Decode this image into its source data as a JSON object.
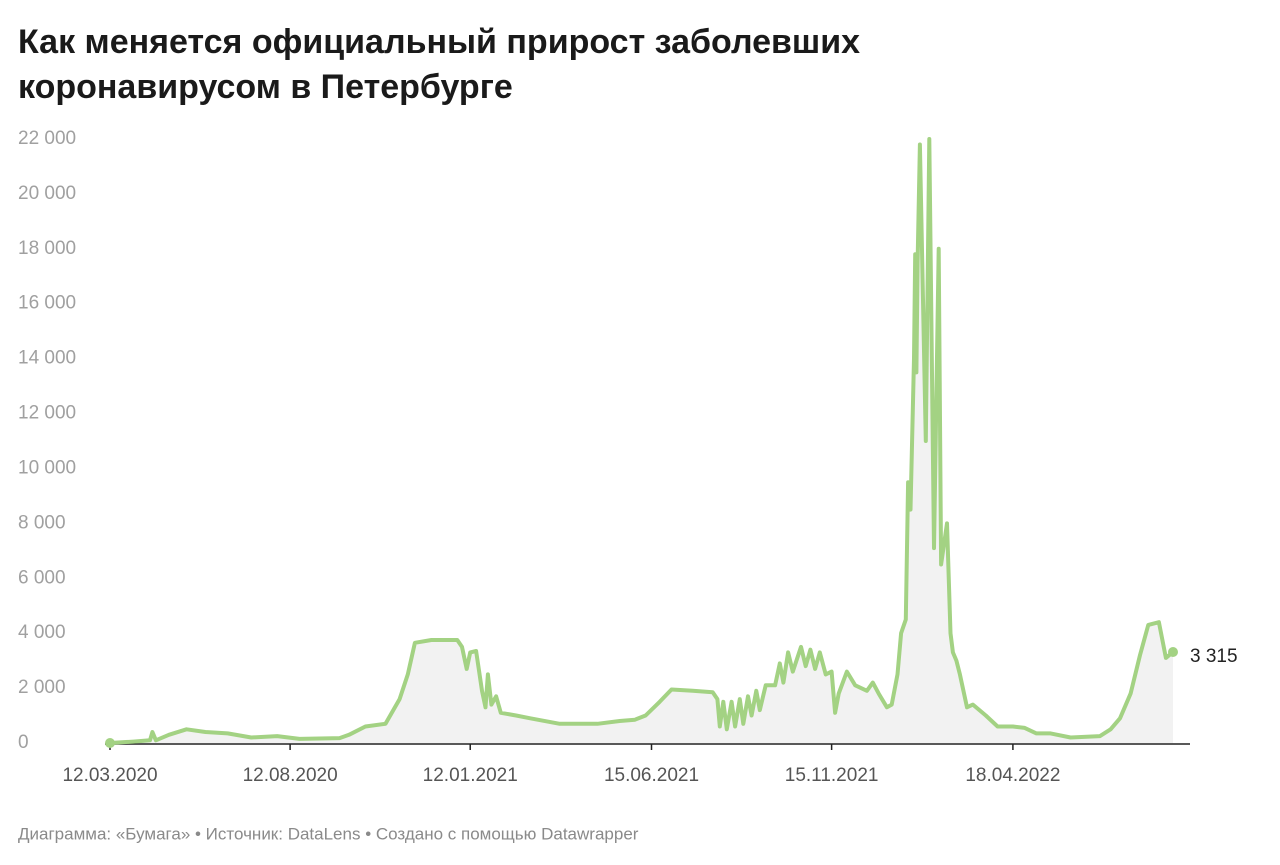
{
  "chart_data": {
    "type": "line",
    "title": "Как меняется официальный прирост заболевших",
    "title_line2": "коронавирусом в Петербурге",
    "source": "Диаграмма: «Бумага» • Источник: DataLens • Создано с помощью Datawrapper",
    "color": "#a3d283",
    "area_color": "#f2f2f2",
    "grid": false,
    "x": [
      "12.03.2020",
      "01.04.2020",
      "15.04.2020",
      "17.04.2020",
      "20.04.2020",
      "01.05.2020",
      "16.05.2020",
      "01.06.2020",
      "20.06.2020",
      "10.07.2020",
      "01.08.2020",
      "20.08.2020",
      "23.09.2020",
      "01.10.2020",
      "15.10.2020",
      "01.11.2020",
      "13.11.2020",
      "20.11.2020",
      "26.11.2020",
      "10.12.2020",
      "01.01.2021",
      "05.01.2021",
      "09.01.2021",
      "12.01.2021",
      "17.01.2021",
      "22.01.2021",
      "25.01.2021",
      "27.01.2021",
      "30.01.2021",
      "03.02.2021",
      "07.02.2021",
      "20.02.2021",
      "04.03.2021",
      "29.03.2021",
      "30.04.2021",
      "19.05.2021",
      "01.06.2021",
      "10.06.2021",
      "22.06.2021",
      "02.07.2021",
      "20.07.2021",
      "06.08.2021",
      "10.08.2021",
      "12.08.2021",
      "15.08.2021",
      "18.08.2021",
      "22.08.2021",
      "25.08.2021",
      "29.08.2021",
      "01.09.2021",
      "05.09.2021",
      "08.09.2021",
      "12.09.2021",
      "15.09.2021",
      "20.09.2021",
      "28.09.2021",
      "02.10.2021",
      "05.10.2021",
      "09.10.2021",
      "13.10.2021",
      "20.10.2021",
      "24.10.2021",
      "28.10.2021",
      "01.11.2021",
      "05.11.2021",
      "10.11.2021",
      "15.11.2021",
      "18.11.2021",
      "21.11.2021",
      "28.11.2021",
      "05.12.2021",
      "15.12.2021",
      "20.12.2021",
      "25.12.2021",
      "01.01.2022",
      "05.01.2022",
      "10.01.2022",
      "13.01.2022",
      "17.01.2022",
      "19.01.2022",
      "21.01.2022",
      "24.01.2022",
      "25.01.2022",
      "26.01.2022",
      "27.01.2022",
      "29.01.2022",
      "03.02.2022",
      "06.02.2022",
      "10.02.2022",
      "14.02.2022",
      "16.02.2022",
      "21.02.2022",
      "24.02.2022",
      "26.02.2022",
      "01.03.2022",
      "04.03.2022",
      "10.03.2022",
      "15.03.2022",
      "26.03.2022",
      "05.04.2022",
      "18.04.2022",
      "28.04.2022",
      "08.05.2022",
      "20.05.2022",
      "06.06.2022",
      "01.07.2022",
      "10.07.2022",
      "18.07.2022",
      "27.07.2022",
      "04.08.2022",
      "11.08.2022",
      "20.08.2022",
      "26.08.2022",
      "01.09.2022"
    ],
    "values": [
      0,
      50,
      100,
      400,
      100,
      300,
      500,
      400,
      350,
      200,
      250,
      150,
      180,
      300,
      600,
      700,
      1600,
      2500,
      3650,
      3750,
      3750,
      3500,
      2700,
      3300,
      3350,
      1900,
      1300,
      2500,
      1400,
      1700,
      1100,
      1000,
      900,
      700,
      700,
      800,
      850,
      1000,
      1500,
      1950,
      1900,
      1850,
      1600,
      600,
      1500,
      500,
      1500,
      600,
      1600,
      700,
      1700,
      1000,
      1900,
      1200,
      2100,
      2100,
      2900,
      2200,
      3300,
      2600,
      3500,
      2800,
      3400,
      2700,
      3300,
      2500,
      2600,
      1100,
      1800,
      2600,
      2100,
      1900,
      2200,
      1800,
      1300,
      1400,
      2500,
      4000,
      4500,
      9500,
      8500,
      14000,
      17800,
      13500,
      17500,
      21800,
      11000,
      22000,
      7100,
      18000,
      6500,
      8000,
      4000,
      3300,
      3000,
      2500,
      1300,
      1400,
      1000,
      600,
      600,
      550,
      350,
      350,
      200,
      250,
      500,
      900,
      1800,
      3200,
      4300,
      4400,
      3100,
      3315
    ],
    "end_label": "3 315",
    "xlim": [
      "12.03.2020",
      "01.09.2022"
    ],
    "xticks": [
      "12.03.2020",
      "12.08.2020",
      "12.01.2021",
      "15.06.2021",
      "15.11.2021",
      "18.04.2022"
    ],
    "ylim": [
      0,
      22000
    ],
    "yticks": [
      0,
      {
        "value": 2000,
        "label": "2 000"
      },
      {
        "value": 4000,
        "label": "4 000"
      },
      {
        "value": 6000,
        "label": "6 000"
      },
      {
        "value": 8000,
        "label": "8 000"
      },
      {
        "value": 10000,
        "label": "10 000"
      },
      {
        "value": 12000,
        "label": "12 000"
      },
      {
        "value": 14000,
        "label": "14 000"
      },
      {
        "value": 16000,
        "label": "16 000"
      },
      {
        "value": 18000,
        "label": "18 000"
      },
      {
        "value": 20000,
        "label": "20 000"
      },
      {
        "value": 22000,
        "label": "22 000"
      }
    ]
  }
}
